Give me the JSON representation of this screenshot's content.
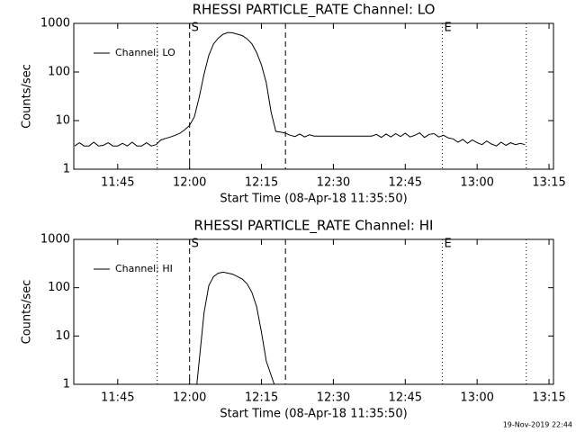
{
  "chart_data": [
    {
      "type": "line",
      "title": "RHESSI PARTICLE_RATE Channel: LO",
      "xlabel": "Start Time (08-Apr-18 11:35:50)",
      "ylabel": "Counts/sec",
      "log_y": true,
      "legend": "upper left",
      "xlim": [
        "11:35:50",
        "13:15:56"
      ],
      "xticks": [
        "11:45",
        "12:00",
        "12:15",
        "12:30",
        "12:45",
        "13:00",
        "13:15"
      ],
      "ylim": [
        1,
        1000
      ],
      "yticks": [
        1,
        10,
        100,
        1000
      ],
      "vlines": [
        {
          "x": "11:53:15",
          "style": "dotted"
        },
        {
          "x": "12:00",
          "style": "dashed",
          "label": "S"
        },
        {
          "x": "12:20",
          "style": "dashed"
        },
        {
          "x": "12:52:45",
          "style": "dotted",
          "label": "E"
        },
        {
          "x": "13:10:15",
          "style": "dotted"
        }
      ],
      "x": [
        "11:36",
        "11:37",
        "11:38",
        "11:39",
        "11:40",
        "11:41",
        "11:42",
        "11:43",
        "11:44",
        "11:45",
        "11:46",
        "11:47",
        "11:48",
        "11:49",
        "11:50",
        "11:51",
        "11:52",
        "11:53",
        "11:54",
        "11:55",
        "11:56",
        "11:57",
        "11:58",
        "11:59",
        "12:00",
        "12:01",
        "12:02",
        "12:03",
        "12:04",
        "12:05",
        "12:06",
        "12:07",
        "12:08",
        "12:09",
        "12:10",
        "12:11",
        "12:12",
        "12:13",
        "12:14",
        "12:15",
        "12:16",
        "12:17",
        "12:18",
        "12:19",
        "12:20",
        "12:21",
        "12:22",
        "12:23",
        "12:24",
        "12:25",
        "12:26",
        "12:27",
        "12:28",
        "12:29",
        "12:30",
        "12:31",
        "12:32",
        "12:33",
        "12:34",
        "12:35",
        "12:36",
        "12:37",
        "12:38",
        "12:39",
        "12:40",
        "12:41",
        "12:42",
        "12:43",
        "12:44",
        "12:45",
        "12:46",
        "12:47",
        "12:48",
        "12:49",
        "12:50",
        "12:51",
        "12:52",
        "12:53",
        "12:54",
        "12:55",
        "12:56",
        "12:57",
        "12:58",
        "12:59",
        "13:00",
        "13:01",
        "13:02",
        "13:03",
        "13:04",
        "13:05",
        "13:06",
        "13:07",
        "13:08",
        "13:09",
        "13:10"
      ],
      "series": [
        {
          "name": "Channel: LO",
          "color": "#000000",
          "values": [
            3,
            3.5,
            3,
            3,
            3.6,
            3,
            3.1,
            3.5,
            3,
            3,
            3.4,
            3,
            3.6,
            3,
            3,
            3.5,
            3,
            3.2,
            4,
            4.3,
            4.6,
            5,
            5.5,
            6.5,
            8,
            12,
            30,
            90,
            220,
            380,
            500,
            600,
            650,
            640,
            600,
            560,
            480,
            380,
            250,
            140,
            60,
            15,
            6,
            5.8,
            5.5,
            5,
            4.7,
            5.3,
            4.6,
            5.1,
            4.8,
            4.8,
            4.8,
            4.8,
            4.8,
            4.8,
            4.8,
            4.8,
            4.8,
            4.8,
            4.8,
            4.8,
            4.8,
            5.2,
            4.5,
            5.3,
            4.6,
            5.4,
            4.7,
            5.5,
            4.6,
            5,
            5.6,
            4.5,
            5.2,
            5.4,
            4.6,
            5,
            4.4,
            4.2,
            3.6,
            4.1,
            3.4,
            4,
            3.5,
            3.2,
            3.8,
            3.3,
            3,
            3.6,
            3.1,
            3.5,
            3.2,
            3.4,
            3.2
          ]
        }
      ]
    },
    {
      "type": "line",
      "title": "RHESSI PARTICLE_RATE Channel: HI",
      "xlabel": "Start Time (08-Apr-18 11:35:50)",
      "ylabel": "Counts/sec",
      "log_y": true,
      "legend": "upper left",
      "xlim": [
        "11:35:50",
        "13:15:56"
      ],
      "xticks": [
        "11:45",
        "12:00",
        "12:15",
        "12:30",
        "12:45",
        "13:00",
        "13:15"
      ],
      "ylim": [
        1,
        1000
      ],
      "yticks": [
        1,
        10,
        100,
        1000
      ],
      "vlines": [
        {
          "x": "11:53:15",
          "style": "dotted"
        },
        {
          "x": "12:00",
          "style": "dashed",
          "label": "S"
        },
        {
          "x": "12:20",
          "style": "dashed"
        },
        {
          "x": "12:52:45",
          "style": "dotted",
          "label": "E"
        },
        {
          "x": "13:10:15",
          "style": "dotted"
        }
      ],
      "x": [
        "12:01:30",
        "12:02",
        "12:03",
        "12:04",
        "12:05",
        "12:06",
        "12:07",
        "12:08",
        "12:09",
        "12:10",
        "12:11",
        "12:12",
        "12:13",
        "12:14",
        "12:15",
        "12:16",
        "12:17:40"
      ],
      "series": [
        {
          "name": "Channel: HI",
          "color": "#000000",
          "values": [
            1,
            3,
            30,
            110,
            170,
            200,
            210,
            200,
            190,
            170,
            150,
            120,
            80,
            40,
            12,
            3,
            1
          ]
        }
      ]
    }
  ],
  "footer": "19-Nov-2019 22:44"
}
